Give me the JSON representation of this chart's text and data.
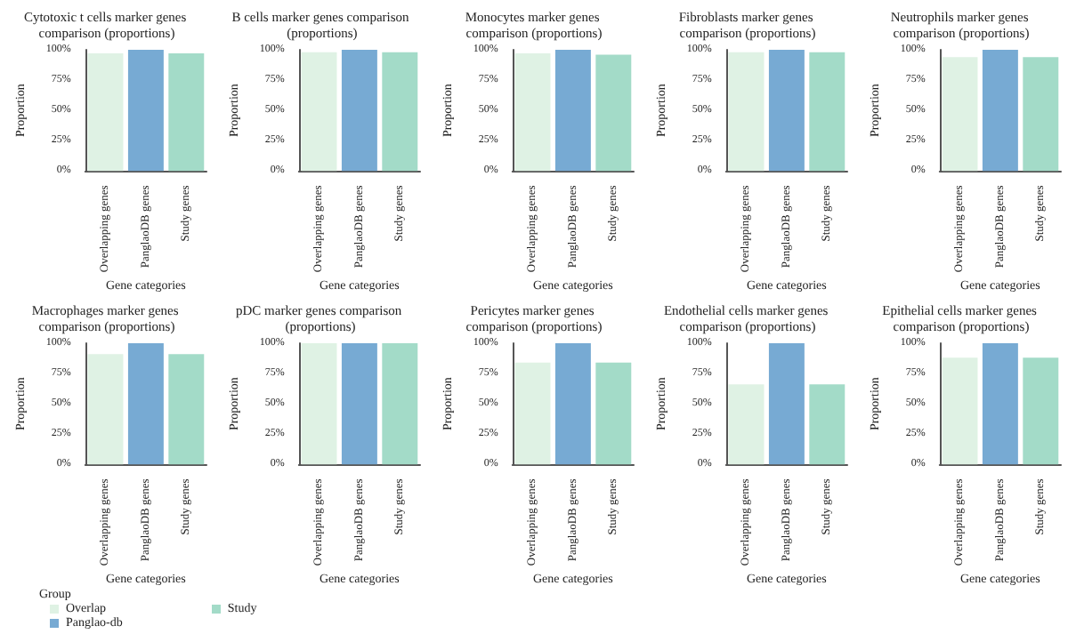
{
  "chart_data": [
    {
      "type": "bar",
      "title": "Cytotoxic t cells marker genes comparison (proportions)",
      "xlabel": "Gene categories",
      "ylabel": "Proportion",
      "categories": [
        "Overlapping genes",
        "PanglaoDB genes",
        "Study genes"
      ],
      "stacked": true,
      "ylim": [
        0,
        1
      ],
      "yticks": [
        {
          "value": 0,
          "label": "0%"
        },
        {
          "value": 0.25,
          "label": "25%"
        },
        {
          "value": 0.5,
          "label": "50%"
        },
        {
          "value": 0.75,
          "label": "75%"
        },
        {
          "value": 1,
          "label": "100%"
        }
      ],
      "legend": "bottom",
      "legend_title": "Group",
      "series": [
        {
          "name": "Overlap",
          "color": "#dff2e4",
          "values": [
            0.97,
            null,
            null
          ]
        },
        {
          "name": "Panglao-db",
          "color": "#77aad3",
          "values": [
            null,
            1,
            null
          ]
        },
        {
          "name": "Study",
          "color": "#a3dbc8",
          "values": [
            null,
            null,
            0.97
          ]
        }
      ]
    },
    {
      "type": "bar",
      "title": "B cells marker genes comparison (proportions)",
      "xlabel": "Gene categories",
      "ylabel": "Proportion",
      "categories": [
        "Overlapping genes",
        "PanglaoDB genes",
        "Study genes"
      ],
      "stacked": true,
      "ylim": [
        0,
        1
      ],
      "yticks": [
        {
          "value": 0,
          "label": "0%"
        },
        {
          "value": 0.25,
          "label": "25%"
        },
        {
          "value": 0.5,
          "label": "50%"
        },
        {
          "value": 0.75,
          "label": "75%"
        },
        {
          "value": 1,
          "label": "100%"
        }
      ],
      "series": [
        {
          "color": "#dff2e4",
          "values": [
            0.98,
            null,
            null
          ]
        },
        {
          "color": "#77aad3",
          "values": [
            null,
            1,
            null
          ]
        },
        {
          "color": "#a3dbc8",
          "values": [
            null,
            null,
            0.98
          ]
        }
      ]
    },
    {
      "type": "bar",
      "title": "Monocytes marker genes comparison (proportions)",
      "xlabel": "Gene categories",
      "ylabel": "Proportion",
      "categories": [
        "Overlapping genes",
        "PanglaoDB genes",
        "Study genes"
      ],
      "stacked": true,
      "ylim": [
        0,
        1
      ],
      "yticks": [
        {
          "value": 0,
          "label": "0%"
        },
        {
          "value": 0.25,
          "label": "25%"
        },
        {
          "value": 0.5,
          "label": "50%"
        },
        {
          "value": 0.75,
          "label": "75%"
        },
        {
          "value": 1,
          "label": "100%"
        }
      ],
      "series": [
        {
          "color": "#dff2e4",
          "values": [
            0.97,
            null,
            null
          ]
        },
        {
          "color": "#77aad3",
          "values": [
            null,
            1,
            null
          ]
        },
        {
          "color": "#a3dbc8",
          "values": [
            null,
            null,
            0.96
          ]
        }
      ]
    },
    {
      "type": "bar",
      "title": "Fibroblasts marker genes comparison (proportions)",
      "xlabel": "Gene categories",
      "ylabel": "Proportion",
      "categories": [
        "Overlapping genes",
        "PanglaoDB genes",
        "Study genes"
      ],
      "stacked": true,
      "ylim": [
        0,
        1
      ],
      "yticks": [
        {
          "value": 0,
          "label": "0%"
        },
        {
          "value": 0.25,
          "label": "25%"
        },
        {
          "value": 0.5,
          "label": "50%"
        },
        {
          "value": 0.75,
          "label": "75%"
        },
        {
          "value": 1,
          "label": "100%"
        }
      ],
      "series": [
        {
          "color": "#dff2e4",
          "values": [
            0.98,
            null,
            null
          ]
        },
        {
          "color": "#77aad3",
          "values": [
            null,
            1,
            null
          ]
        },
        {
          "color": "#a3dbc8",
          "values": [
            null,
            null,
            0.98
          ]
        }
      ]
    },
    {
      "type": "bar",
      "title": "Neutrophils marker genes comparison (proportions)",
      "xlabel": "Gene categories",
      "ylabel": "Proportion",
      "categories": [
        "Overlapping genes",
        "PanglaoDB genes",
        "Study genes"
      ],
      "stacked": true,
      "ylim": [
        0,
        1
      ],
      "yticks": [
        {
          "value": 0,
          "label": "0%"
        },
        {
          "value": 0.25,
          "label": "25%"
        },
        {
          "value": 0.5,
          "label": "50%"
        },
        {
          "value": 0.75,
          "label": "75%"
        },
        {
          "value": 1,
          "label": "100%"
        }
      ],
      "series": [
        {
          "color": "#dff2e4",
          "values": [
            0.94,
            null,
            null
          ]
        },
        {
          "color": "#77aad3",
          "values": [
            null,
            1,
            null
          ]
        },
        {
          "color": "#a3dbc8",
          "values": [
            null,
            null,
            0.94
          ]
        }
      ]
    },
    {
      "type": "bar",
      "title": "Macrophages marker genes comparison (proportions)",
      "xlabel": "Gene categories",
      "ylabel": "Proportion",
      "categories": [
        "Overlapping genes",
        "PanglaoDB genes",
        "Study genes"
      ],
      "stacked": true,
      "ylim": [
        0,
        1
      ],
      "yticks": [
        {
          "value": 0,
          "label": "0%"
        },
        {
          "value": 0.25,
          "label": "25%"
        },
        {
          "value": 0.5,
          "label": "50%"
        },
        {
          "value": 0.75,
          "label": "75%"
        },
        {
          "value": 1,
          "label": "100%"
        }
      ],
      "series": [
        {
          "color": "#dff2e4",
          "values": [
            0.91,
            null,
            null
          ]
        },
        {
          "color": "#77aad3",
          "values": [
            null,
            1,
            null
          ]
        },
        {
          "color": "#a3dbc8",
          "values": [
            null,
            null,
            0.91
          ]
        }
      ]
    },
    {
      "type": "bar",
      "title": "pDC marker genes comparison (proportions)",
      "xlabel": "Gene categories",
      "ylabel": "Proportion",
      "categories": [
        "Overlapping genes",
        "PanglaoDB genes",
        "Study genes"
      ],
      "stacked": true,
      "ylim": [
        0,
        1
      ],
      "yticks": [
        {
          "value": 0,
          "label": "0%"
        },
        {
          "value": 0.25,
          "label": "25%"
        },
        {
          "value": 0.5,
          "label": "50%"
        },
        {
          "value": 0.75,
          "label": "75%"
        },
        {
          "value": 1,
          "label": "100%"
        }
      ],
      "series": [
        {
          "color": "#dff2e4",
          "values": [
            1,
            null,
            null
          ]
        },
        {
          "color": "#77aad3",
          "values": [
            null,
            1,
            null
          ]
        },
        {
          "color": "#a3dbc8",
          "values": [
            null,
            null,
            1
          ]
        }
      ]
    },
    {
      "type": "bar",
      "title": "Pericytes marker genes comparison (proportions)",
      "xlabel": "Gene categories",
      "ylabel": "Proportion",
      "categories": [
        "Overlapping genes",
        "PanglaoDB genes",
        "Study genes"
      ],
      "stacked": true,
      "ylim": [
        0,
        1
      ],
      "yticks": [
        {
          "value": 0,
          "label": "0%"
        },
        {
          "value": 0.25,
          "label": "25%"
        },
        {
          "value": 0.5,
          "label": "50%"
        },
        {
          "value": 0.75,
          "label": "75%"
        },
        {
          "value": 1,
          "label": "100%"
        }
      ],
      "series": [
        {
          "color": "#dff2e4",
          "values": [
            0.84,
            null,
            null
          ]
        },
        {
          "color": "#77aad3",
          "values": [
            null,
            1,
            null
          ]
        },
        {
          "color": "#a3dbc8",
          "values": [
            null,
            null,
            0.84
          ]
        }
      ]
    },
    {
      "type": "bar",
      "title": "Endothelial cells marker genes comparison (proportions)",
      "xlabel": "Gene categories",
      "ylabel": "Proportion",
      "categories": [
        "Overlapping genes",
        "PanglaoDB genes",
        "Study genes"
      ],
      "stacked": true,
      "ylim": [
        0,
        1
      ],
      "yticks": [
        {
          "value": 0,
          "label": "0%"
        },
        {
          "value": 0.25,
          "label": "25%"
        },
        {
          "value": 0.5,
          "label": "50%"
        },
        {
          "value": 0.75,
          "label": "75%"
        },
        {
          "value": 1,
          "label": "100%"
        }
      ],
      "series": [
        {
          "color": "#dff2e4",
          "values": [
            0.66,
            null,
            null
          ]
        },
        {
          "color": "#77aad3",
          "values": [
            null,
            1,
            null
          ]
        },
        {
          "color": "#a3dbc8",
          "values": [
            null,
            null,
            0.66
          ]
        }
      ]
    },
    {
      "type": "bar",
      "title": "Epithelial cells marker genes comparison (proportions)",
      "xlabel": "Gene categories",
      "ylabel": "Proportion",
      "categories": [
        "Overlapping genes",
        "PanglaoDB genes",
        "Study genes"
      ],
      "stacked": true,
      "ylim": [
        0,
        1
      ],
      "yticks": [
        {
          "value": 0,
          "label": "0%"
        },
        {
          "value": 0.25,
          "label": "25%"
        },
        {
          "value": 0.5,
          "label": "50%"
        },
        {
          "value": 0.75,
          "label": "75%"
        },
        {
          "value": 1,
          "label": "100%"
        }
      ],
      "series": [
        {
          "color": "#dff2e4",
          "values": [
            0.88,
            null,
            null
          ]
        },
        {
          "color": "#77aad3",
          "values": [
            null,
            1,
            null
          ]
        },
        {
          "color": "#a3dbc8",
          "values": [
            null,
            null,
            0.88
          ]
        }
      ]
    }
  ]
}
